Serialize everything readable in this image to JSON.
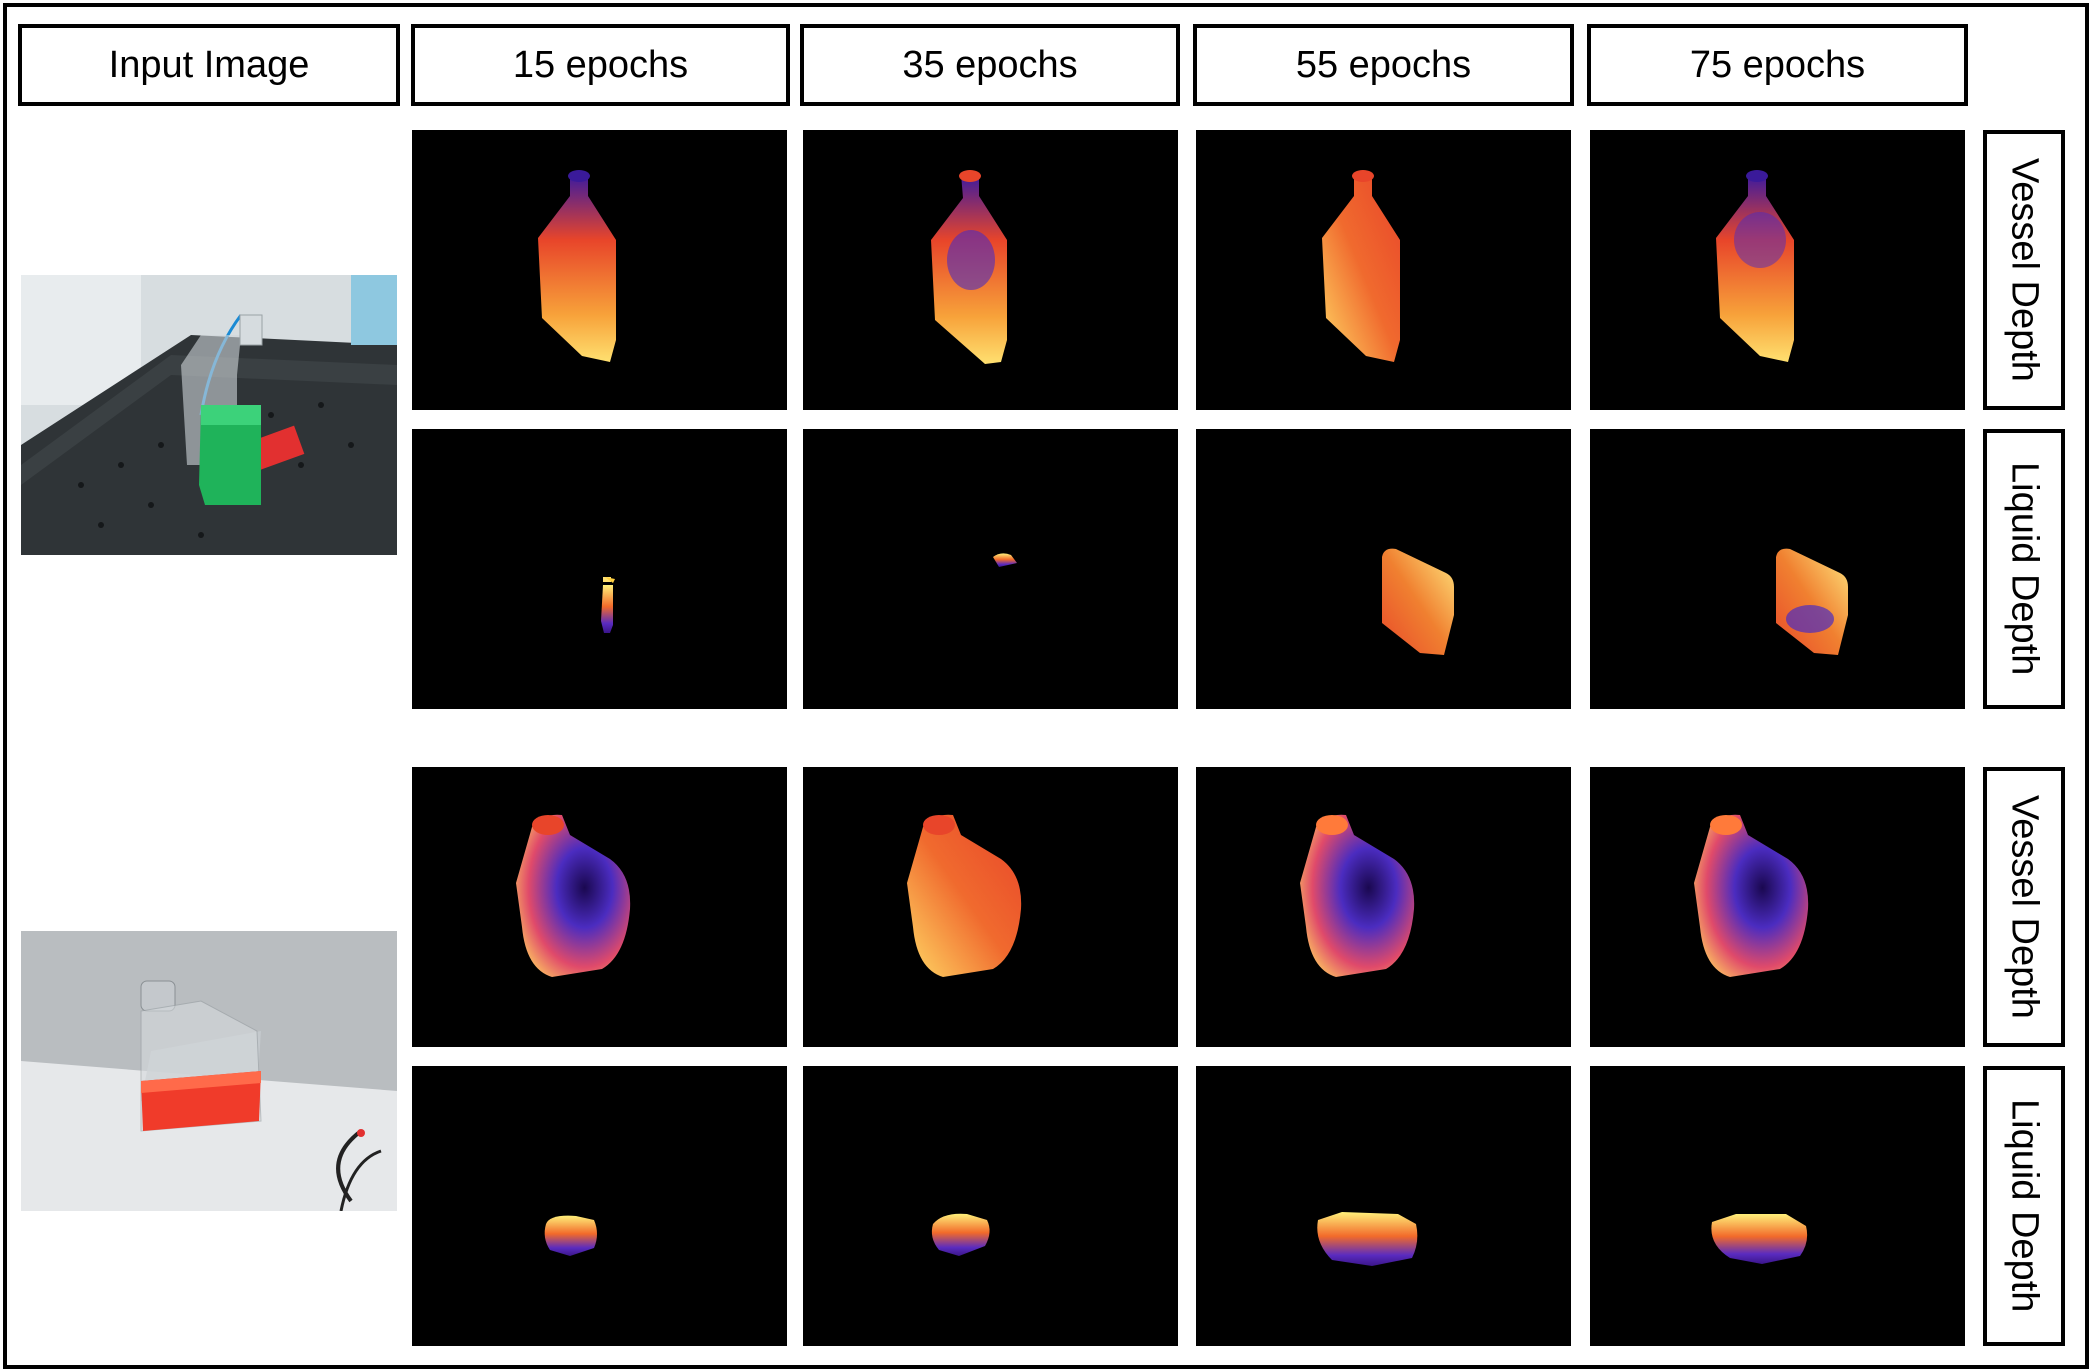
{
  "headers": {
    "input": "Input Image",
    "epochs": [
      "15 epochs",
      "35 epochs",
      "55 epochs",
      "75 epochs"
    ]
  },
  "row_labels": {
    "vessel": "Vessel Depth",
    "liquid": "Liquid Depth"
  },
  "colors": {
    "depth_dark": "#2a0f8a",
    "depth_mid": "#e8452a",
    "depth_bright": "#ffe070",
    "green_liquid": "#1fb35a",
    "red_liquid": "#f03b2a"
  }
}
